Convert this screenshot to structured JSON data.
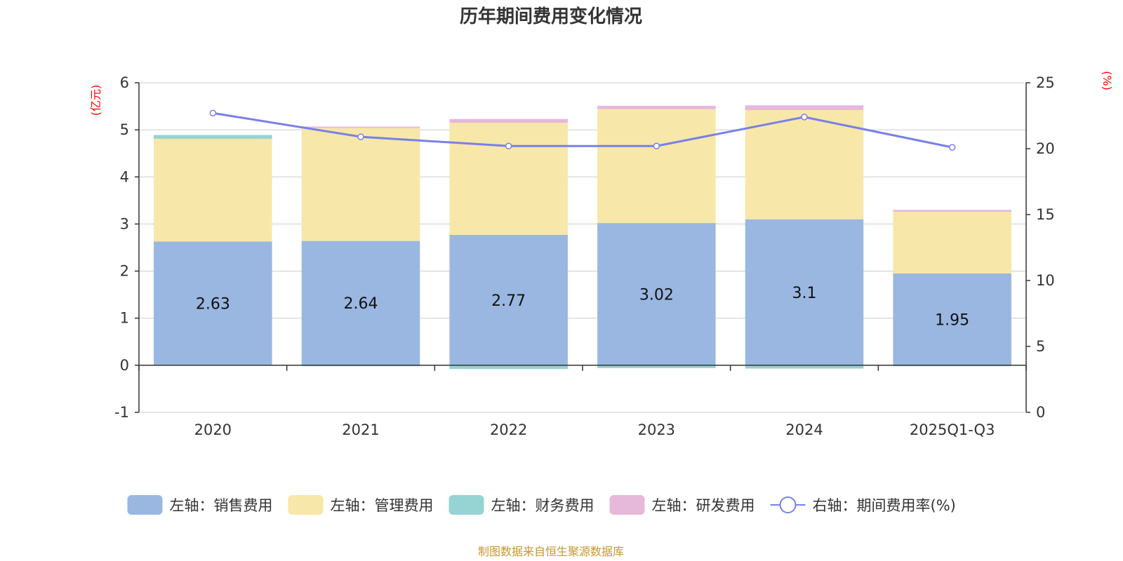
{
  "chart_data": {
    "type": "bar",
    "stacked": true,
    "title": "历年期间费用变化情况",
    "categories": [
      "2020",
      "2021",
      "2022",
      "2023",
      "2024",
      "2025Q1-Q3"
    ],
    "left_axis": {
      "unit_label": "(亿元)",
      "ylim": [
        -1,
        6
      ],
      "ticks": [
        "-1",
        "0",
        "1",
        "2",
        "3",
        "4",
        "5",
        "6"
      ]
    },
    "right_axis": {
      "unit_label": "(%)",
      "ylim": [
        0,
        25
      ],
      "ticks": [
        "0",
        "5",
        "10",
        "15",
        "20",
        "25"
      ]
    },
    "series": [
      {
        "name": "左轴：销售费用",
        "axis": "left",
        "color": "#9ab7e1",
        "values": [
          2.63,
          2.64,
          2.77,
          3.02,
          3.1,
          1.95
        ],
        "labels": [
          "2.63",
          "2.64",
          "2.77",
          "3.02",
          "3.1",
          "1.95"
        ]
      },
      {
        "name": "左轴：管理费用",
        "axis": "left",
        "color": "#f7e7a8",
        "values": [
          2.18,
          2.4,
          2.38,
          2.42,
          2.32,
          1.31
        ]
      },
      {
        "name": "左轴：财务费用",
        "axis": "left",
        "color": "#96d3d3",
        "values": [
          0.08,
          -0.02,
          -0.08,
          -0.06,
          -0.07,
          -0.02
        ]
      },
      {
        "name": "左轴：研发费用",
        "axis": "left",
        "color": "#e6b8d9",
        "values": [
          0.0,
          0.03,
          0.08,
          0.07,
          0.1,
          0.04
        ]
      }
    ],
    "line": {
      "name": "右轴：期间费用率(%)",
      "axis": "right",
      "color": "#7880e8",
      "values": [
        22.7,
        20.9,
        20.2,
        20.2,
        22.4,
        20.1
      ]
    },
    "grid": true,
    "legend_position": "bottom"
  },
  "source": "制图数据来自恒生聚源数据库"
}
